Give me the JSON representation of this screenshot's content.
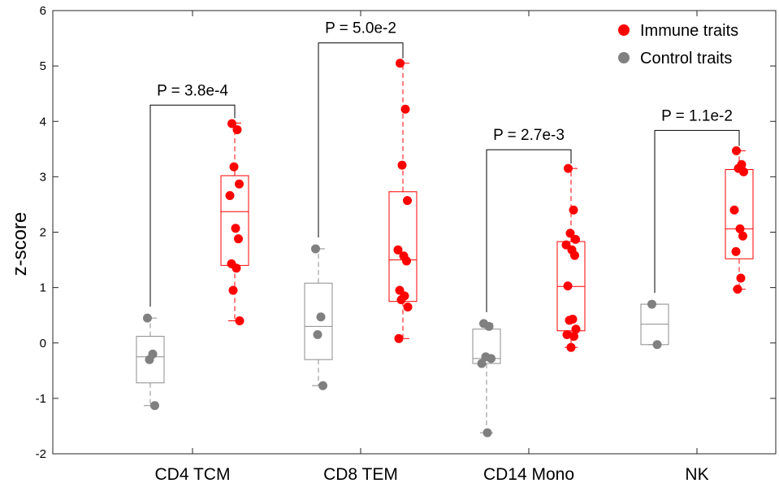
{
  "chart_data": {
    "type": "box",
    "ylabel": "z-score",
    "xlabel": "",
    "ylim": [
      -2,
      6
    ],
    "yticks": [
      "-2",
      "-1",
      "0",
      "1",
      "2",
      "3",
      "4",
      "5",
      "6"
    ],
    "categories": [
      "CD4 TCM",
      "CD8 TEM",
      "CD14 Mono",
      "NK"
    ],
    "legend": {
      "position": "top-right",
      "entries": [
        {
          "label": "Immune traits",
          "color": "#ff0000"
        },
        {
          "label": "Control traits",
          "color": "#808080"
        }
      ]
    },
    "pvalues": [
      "P = 3.8e-4",
      "P = 5.0e-2",
      "P = 2.7e-3",
      "P = 1.1e-2"
    ],
    "series": [
      {
        "name": "Control traits",
        "color": "#808080",
        "box_color": "#8c8c8c",
        "boxes": [
          {
            "q1": -0.72,
            "median": -0.25,
            "q3": 0.12,
            "whisker_low": -1.13,
            "whisker_high": 0.45,
            "points": [
              0.45,
              -0.2,
              -0.3,
              -1.13
            ]
          },
          {
            "q1": -0.3,
            "median": 0.3,
            "q3": 1.08,
            "whisker_low": -0.77,
            "whisker_high": 1.7,
            "points": [
              1.7,
              0.47,
              0.15,
              -0.77
            ]
          },
          {
            "q1": -0.37,
            "median": -0.28,
            "q3": 0.25,
            "whisker_low": -1.62,
            "whisker_high": 0.35,
            "points": [
              0.35,
              0.3,
              -0.25,
              -0.28,
              -0.37,
              -1.62
            ]
          },
          {
            "q1": -0.03,
            "median": 0.34,
            "q3": 0.7,
            "whisker_low": -0.03,
            "whisker_high": 0.7,
            "points": [
              0.7,
              -0.03
            ]
          }
        ]
      },
      {
        "name": "Immune traits",
        "color": "#ff0000",
        "box_color": "#ff0000",
        "boxes": [
          {
            "q1": 1.4,
            "median": 2.37,
            "q3": 3.02,
            "whisker_low": 0.4,
            "whisker_high": 3.97,
            "points": [
              3.96,
              3.85,
              3.18,
              2.87,
              2.66,
              2.07,
              1.88,
              1.43,
              1.35,
              0.95,
              0.4
            ]
          },
          {
            "q1": 0.75,
            "median": 1.5,
            "q3": 2.73,
            "whisker_low": 0.08,
            "whisker_high": 5.05,
            "points": [
              5.05,
              4.22,
              3.21,
              2.57,
              1.68,
              1.57,
              1.48,
              0.95,
              0.85,
              0.78,
              0.65,
              0.08
            ]
          },
          {
            "q1": 0.22,
            "median": 1.02,
            "q3": 1.83,
            "whisker_low": -0.08,
            "whisker_high": 3.15,
            "points": [
              3.15,
              2.4,
              1.98,
              1.87,
              1.77,
              1.68,
              1.58,
              1.03,
              0.43,
              0.41,
              0.25,
              0.15,
              0.12,
              -0.08
            ]
          },
          {
            "q1": 1.52,
            "median": 2.06,
            "q3": 3.13,
            "whisker_low": 0.97,
            "whisker_high": 3.47,
            "points": [
              3.47,
              3.22,
              3.15,
              3.09,
              2.4,
              2.06,
              1.93,
              1.65,
              1.17,
              0.97
            ]
          }
        ]
      }
    ]
  }
}
